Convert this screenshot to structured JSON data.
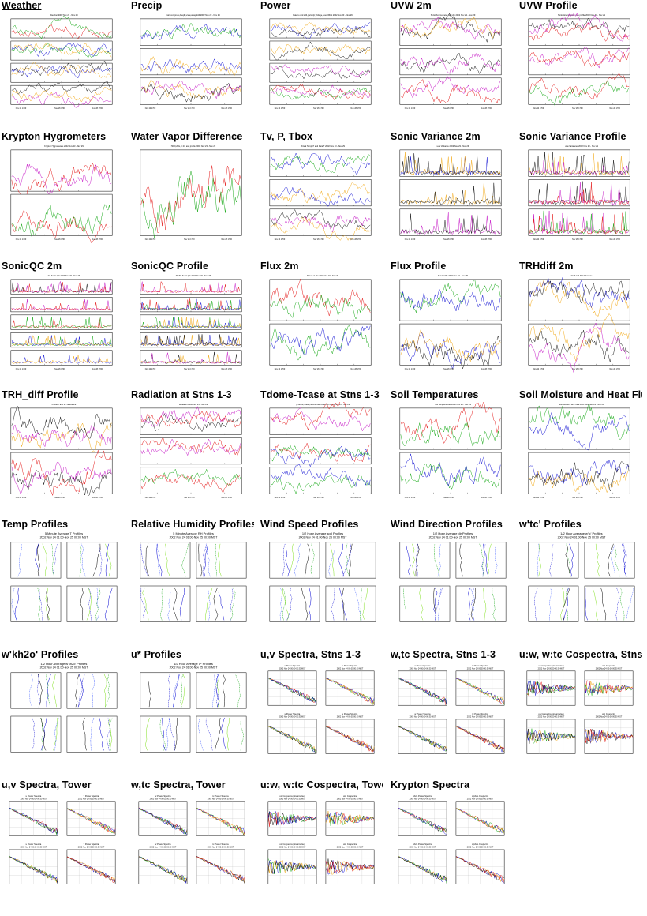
{
  "page_title": "",
  "colors": {
    "red": "#e00000",
    "green": "#00a000",
    "blue": "#0000d0",
    "orange": "#f0a000",
    "black": "#000000",
    "lime": "#80e020",
    "magenta": "#c000c0",
    "gray": "#777777"
  },
  "plots": [
    {
      "label": "Weather",
      "kind": "ts",
      "panels": 4,
      "header": "Weather 2002 Nov 23 - Nov 29"
    },
    {
      "label": "Precip",
      "kind": "ts",
      "panels": 3,
      "header": "rain,corr.press,Deqth,snow,away 2d4 2002 Nov 23 - Nov 29"
    },
    {
      "label": "Power",
      "kind": "ts",
      "panels": 4,
      "header": "Rate to spd 2d4,pwr2p/p,Voltage,Ivout,Wbpt 2002 Nov 23 - Nov 29"
    },
    {
      "label": "UVW 2m",
      "kind": "ts",
      "panels": 3,
      "header": "Sonic Anemometer uvw 2m 2002 Nov 23 - Nov 29"
    },
    {
      "label": "UVW Profile",
      "kind": "ts",
      "panels": 3,
      "header": "Sonic Anemometer uvw profile 2002 Nov 23 - Nov 29"
    },
    {
      "label": "Krypton Hygrometers",
      "kind": "ts",
      "panels": 2,
      "header": "Krypton Hygrometers 2002 Nov 23 - Nov 29"
    },
    {
      "label": "Water Vapor Difference",
      "kind": "ts",
      "panels": 1,
      "header": "H2O,kh2o,lh 2m and profile 2002 Nov 23 - Nov 29"
    },
    {
      "label": "Tv, P, Tbox",
      "kind": "ts",
      "panels": 3,
      "header": "Virtual Temp, P and Data T 2002 Nov 23 - Nov 29"
    },
    {
      "label": "Sonic Variance 2m",
      "kind": "ts",
      "panels": 3,
      "header": "uvw Variance 2002 Nov 23 - Nov 29"
    },
    {
      "label": "Sonic Variance Profile",
      "kind": "ts",
      "panels": 3,
      "header": "uvw Variances 2002 Nov 23 - Nov 29"
    },
    {
      "label": "SonicQC 2m",
      "kind": "ts",
      "panels": 5,
      "header": "2m Sonic QC 2002 Nov 23 - Nov 29"
    },
    {
      "label": "SonicQC Profile",
      "kind": "ts",
      "panels": 5,
      "header": "Profile Sonic QC 2002 Nov 23 - Nov 29"
    },
    {
      "label": "Flux 2m",
      "kind": "ts",
      "panels": 2,
      "header": "Fluxes at 2m 2002 Nov 23 - Nov 29"
    },
    {
      "label": "Flux Profile",
      "kind": "ts",
      "panels": 2,
      "header": "Flux Profile 2002 Nov 23 - Nov 29"
    },
    {
      "label": "TRHdiff 2m",
      "kind": "ts",
      "panels": 2,
      "header": "2m T and RH difference"
    },
    {
      "label": "TRH_diff Profile",
      "kind": "ts",
      "panels": 2,
      "header": "Profile T and RH difference"
    },
    {
      "label": "Radiation at Stns 1-3",
      "kind": "ts",
      "panels": 3,
      "header": "Radiation 2002 Nov 23 - Nov 29"
    },
    {
      "label": "Tdome-Tcase at Stns 1-3",
      "kind": "ts",
      "panels": 3,
      "header": "(T-dome,Tcase) & Channel Tcase 2d3 2002 Nov 23 - Nov 29"
    },
    {
      "label": "Soil Temperatures",
      "kind": "ts",
      "panels": 2,
      "header": "Soil Temperatures 2002 Nov 23 - Nov 29"
    },
    {
      "label": "Soil Moisture and Heat Flux",
      "kind": "ts",
      "panels": 2,
      "header": "Soil Moisture and Heat Flux 2002 Nov 23 - Nov 29"
    },
    {
      "label": "Temp Profiles",
      "kind": "prof",
      "header": "5 Minute Average T Profiles",
      "subheader": "2002 Nov 24 01:00-Nov 25 00:00 MST"
    },
    {
      "label": "Relative Humidity Profiles",
      "kind": "prof",
      "header": "5 Minute Average RH Profiles",
      "subheader": "2002 Nov 24 01:00-Nov 25 00:00 MST"
    },
    {
      "label": "Wind Speed Profiles",
      "kind": "prof",
      "header": "1/2 Hour Average spd Profiles",
      "subheader": "2002 Nov 24 01:00-Nov 25 00:00 MST"
    },
    {
      "label": "Wind Direction Profiles",
      "kind": "prof",
      "header": "1/2 Hour Average dir Profiles",
      "subheader": "2002 Nov 24 01:00-Nov 25 00:00 MST"
    },
    {
      "label": "w'tc' Profiles",
      "kind": "prof",
      "header": "1/2 Hour Average w'tc' Profiles",
      "subheader": "2002 Nov 24 01:00-Nov 25 00:00 MST"
    },
    {
      "label": "w'kh2o' Profiles",
      "kind": "prof",
      "header": "1/2 Hour Average w'kh2o' Profiles",
      "subheader": "2002 Nov 24 01:00-Nov 25 00:00 MST"
    },
    {
      "label": "u* Profiles",
      "kind": "prof",
      "header": "1/2 Hour Average u* Profiles",
      "subheader": "2002 Nov 24 01:00-Nov 25 00:00 MST"
    },
    {
      "label": "u,v Spectra, Stns 1-3",
      "kind": "spec",
      "quads": [
        "u Power Spectra",
        "v Power Spectra",
        "u Power Spectra",
        "v Power Spectra"
      ],
      "subheader": "2002 Nov 24 00:00-00:30 MST"
    },
    {
      "label": "w,tc Spectra, Stns 1-3",
      "kind": "spec",
      "quads": [
        "w Power Spectra",
        "tc Power Spectra",
        "w Power Spectra",
        "tc Power Spectra"
      ],
      "subheader": "2002 Nov 24 00:00-00:30 MST"
    },
    {
      "label": "u:w, w:tc Cospectra, Stns",
      "kind": "cospec",
      "quads": [
        "uw Cospectra (streamwise)",
        "wtc Cospectra",
        "uw Cospectra (streamwise)",
        "wtc Cospectra"
      ],
      "subheader": "2002 Nov 24 00:00-00:30 MST"
    },
    {
      "label": "u,v Spectra, Tower",
      "kind": "spec",
      "quads": [
        "u Power Spectra",
        "v Power Spectra",
        "u Power Spectra",
        "v Power Spectra"
      ],
      "subheader": "2002 Nov 24 00:00-00:30 MST"
    },
    {
      "label": "w,tc Spectra, Tower",
      "kind": "spec",
      "quads": [
        "w Power Spectra",
        "tc Power Spectra",
        "w Power Spectra",
        "tc Power Spectra"
      ],
      "subheader": "2002 Nov 24 00:00-00:30 MST"
    },
    {
      "label": "u:w, w:tc Cospectra, Tower",
      "kind": "cospec",
      "quads": [
        "uw Cospectra (streamwise)",
        "wtc Cospectra",
        "uw Cospectra (streamwise)",
        "wtc Cospectra"
      ],
      "subheader": "2002 Nov 24 00:00-00:30 MST"
    },
    {
      "label": "Krypton Spectra",
      "kind": "spec",
      "quads": [
        "kh2o Power Spectra",
        "w,kh2o Cospectra",
        "kh2o Power Spectra",
        "w,kh2o Cospectra"
      ],
      "subheader": "2002 Nov 24 00:00-00:30 MST"
    }
  ]
}
